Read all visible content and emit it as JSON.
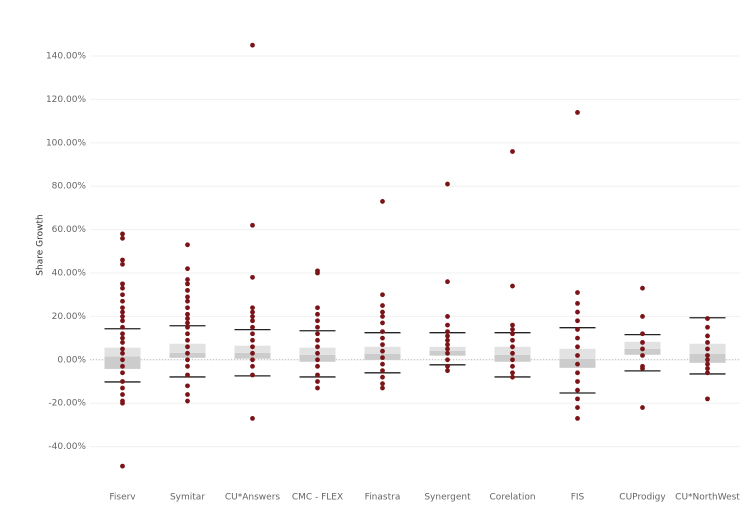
{
  "chart_data": {
    "type": "box",
    "y_label": "Share Growth",
    "categories": [
      "Fiserv",
      "Symitar",
      "CU*Answers",
      "CMC - FLEX",
      "Finastra",
      "Synergent",
      "Corelation",
      "FIS",
      "CUProdigy",
      "CU*NorthWest"
    ],
    "boxes": [
      {
        "whisker_low": -10.2,
        "q1": -4.2,
        "median": 1.5,
        "q3": 5.6,
        "whisker_high": 14.3,
        "points": [
          58,
          56,
          46,
          44,
          35,
          33,
          30,
          27,
          24,
          22,
          20,
          18,
          15,
          12,
          10,
          8,
          5,
          3,
          0,
          -3,
          -6,
          -10,
          -13,
          -16,
          -19,
          -20,
          -49
        ]
      },
      {
        "whisker_low": -7.9,
        "q1": 0.9,
        "median": 3.2,
        "q3": 7.4,
        "whisker_high": 15.7,
        "points": [
          53,
          42,
          37,
          35,
          32,
          29,
          27,
          24,
          21,
          19,
          17,
          15,
          12,
          9,
          6,
          3,
          0,
          -3,
          -7,
          -12,
          -16,
          -19
        ]
      },
      {
        "whisker_low": -7.4,
        "q1": 0.5,
        "median": 3.2,
        "q3": 6.5,
        "whisker_high": 13.9,
        "points": [
          145,
          62,
          38,
          24,
          22,
          20,
          18,
          15,
          12,
          9,
          6,
          3,
          0,
          -3,
          -7,
          -27
        ]
      },
      {
        "whisker_low": -7.9,
        "q1": -0.9,
        "median": 2.3,
        "q3": 5.6,
        "whisker_high": 13.4,
        "points": [
          41,
          40,
          24,
          21,
          18,
          15,
          12,
          9,
          6,
          3,
          0,
          -3,
          -7,
          -10,
          -13
        ]
      },
      {
        "whisker_low": -6.0,
        "q1": 0,
        "median": 2.8,
        "q3": 6.0,
        "whisker_high": 12.5,
        "points": [
          73,
          30,
          25,
          22,
          20,
          17,
          13,
          10,
          7,
          4,
          1,
          -2,
          -5,
          -8,
          -11,
          -13
        ]
      },
      {
        "whisker_low": -2.3,
        "q1": 1.9,
        "median": 4.2,
        "q3": 6.0,
        "whisker_high": 12.5,
        "points": [
          81,
          36,
          20,
          16,
          13,
          11,
          9,
          7,
          5,
          3,
          0,
          -3,
          -5
        ]
      },
      {
        "whisker_low": -7.9,
        "q1": -0.9,
        "median": 2.3,
        "q3": 6.0,
        "whisker_high": 12.5,
        "points": [
          96,
          34,
          16,
          14,
          12,
          9,
          6,
          3,
          0,
          -3,
          -6,
          -8
        ]
      },
      {
        "whisker_low": -15.3,
        "q1": -3.7,
        "median": 0.5,
        "q3": 5.1,
        "whisker_high": 14.8,
        "points": [
          114,
          31,
          26,
          22,
          18,
          14,
          10,
          6,
          2,
          -2,
          -6,
          -10,
          -14,
          -18,
          -22,
          -27
        ]
      },
      {
        "whisker_low": -5.1,
        "q1": 2.3,
        "median": 5.1,
        "q3": 8.3,
        "whisker_high": 11.6,
        "points": [
          33,
          20,
          12,
          8,
          5,
          2,
          -3,
          -4,
          -22
        ]
      },
      {
        "whisker_low": -6.5,
        "q1": -1.4,
        "median": 2.8,
        "q3": 7.4,
        "whisker_high": 19.4,
        "points": [
          19,
          15,
          11,
          8,
          5,
          2,
          0,
          -2,
          -4,
          -6,
          -18
        ]
      }
    ],
    "point_color": "#7b1418",
    "box_upper_color": "#e2e2e2",
    "box_lower_color": "#cccccc",
    "whisker_color": "#222222",
    "ylim": [
      -60,
      152
    ],
    "yticks": [
      {
        "value": -40,
        "label": "-40.00%"
      },
      {
        "value": -20,
        "label": "-20.00%"
      },
      {
        "value": 0,
        "label": "0.00%"
      },
      {
        "value": 20,
        "label": "20.00%"
      },
      {
        "value": 40,
        "label": "40.00%"
      },
      {
        "value": 60,
        "label": "60.00%"
      },
      {
        "value": 80,
        "label": "80.00%"
      },
      {
        "value": 100,
        "label": "100.00%"
      },
      {
        "value": 120,
        "label": "120.00%"
      },
      {
        "value": 140,
        "label": "140.00%"
      }
    ],
    "grid": true,
    "zero_line": true
  }
}
